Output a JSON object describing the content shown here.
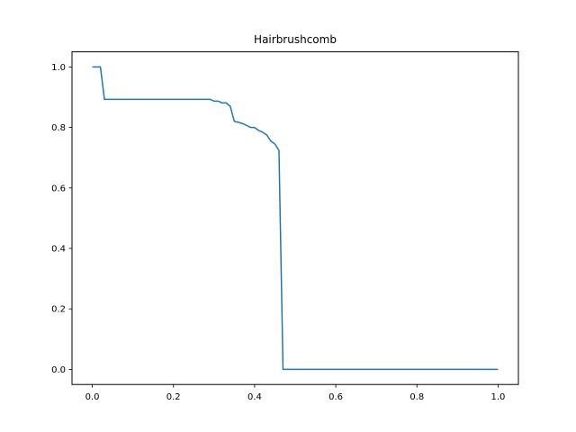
{
  "chart_data": {
    "type": "line",
    "title": "Hairbrushcomb",
    "xlabel": "",
    "ylabel": "",
    "xlim": [
      -0.05,
      1.05
    ],
    "ylim": [
      -0.05,
      1.05
    ],
    "grid": false,
    "x_ticks": [
      0.0,
      0.2,
      0.4,
      0.6,
      0.8,
      1.0
    ],
    "y_ticks": [
      0.0,
      0.2,
      0.4,
      0.6,
      0.8,
      1.0
    ],
    "x_tick_labels": [
      "0.0",
      "0.2",
      "0.4",
      "0.6",
      "0.8",
      "1.0"
    ],
    "y_tick_labels": [
      "0.0",
      "0.2",
      "0.4",
      "0.6",
      "0.8",
      "1.0"
    ],
    "series": [
      {
        "color": "#1f77b4",
        "x": [
          0.0,
          0.02,
          0.03,
          0.29,
          0.3,
          0.31,
          0.32,
          0.33,
          0.34,
          0.35,
          0.36,
          0.37,
          0.38,
          0.39,
          0.4,
          0.41,
          0.42,
          0.43,
          0.44,
          0.45,
          0.46,
          0.47,
          1.0
        ],
        "y": [
          1.0,
          1.0,
          0.893,
          0.893,
          0.887,
          0.887,
          0.881,
          0.881,
          0.87,
          0.82,
          0.817,
          0.813,
          0.807,
          0.8,
          0.8,
          0.79,
          0.784,
          0.775,
          0.755,
          0.745,
          0.724,
          0.0,
          0.0
        ]
      }
    ]
  }
}
